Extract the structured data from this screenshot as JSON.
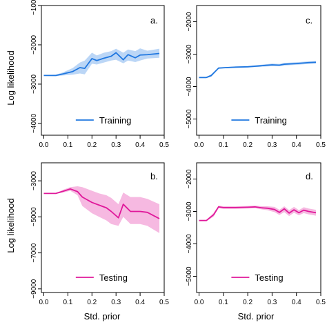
{
  "chart_data": [
    {
      "panel": "a.",
      "type": "line",
      "xlabel": "",
      "ylabel": "Log likelihood",
      "xlim": [
        -0.01,
        0.5
      ],
      "ylim": [
        -4300,
        -1000
      ],
      "xticks": [
        0.0,
        0.1,
        0.2,
        0.3,
        0.4,
        0.5
      ],
      "yticks": [
        -1000,
        -2000,
        -3000,
        -4000
      ],
      "legend": "bottom-center",
      "series": [
        {
          "name": "Training",
          "color": "#1f77e0",
          "x": [
            0.0,
            0.05,
            0.08,
            0.12,
            0.15,
            0.17,
            0.2,
            0.22,
            0.25,
            0.28,
            0.3,
            0.33,
            0.35,
            0.38,
            0.4,
            0.43,
            0.48
          ],
          "y": [
            -2780,
            -2780,
            -2740,
            -2680,
            -2580,
            -2600,
            -2350,
            -2400,
            -2340,
            -2290,
            -2200,
            -2380,
            -2250,
            -2330,
            -2260,
            -2250,
            -2220
          ],
          "lower": [
            -2790,
            -2800,
            -2780,
            -2760,
            -2730,
            -2750,
            -2480,
            -2500,
            -2450,
            -2400,
            -2380,
            -2470,
            -2400,
            -2440,
            -2400,
            -2350,
            -2330
          ],
          "upper": [
            -2770,
            -2760,
            -2700,
            -2590,
            -2450,
            -2400,
            -2200,
            -2270,
            -2200,
            -2160,
            -2100,
            -2200,
            -2120,
            -2160,
            -2090,
            -2150,
            -2100
          ]
        }
      ]
    },
    {
      "panel": "c.",
      "type": "line",
      "xlabel": "",
      "ylabel": "",
      "xlim": [
        -0.01,
        0.5
      ],
      "ylim": [
        -5500,
        -1500
      ],
      "xticks": [
        0.0,
        0.1,
        0.2,
        0.3,
        0.4,
        0.5
      ],
      "yticks": [
        -2000,
        -3000,
        -4000,
        -5000
      ],
      "legend": "bottom-center",
      "series": [
        {
          "name": "Training",
          "color": "#1f77e0",
          "x": [
            0.0,
            0.03,
            0.05,
            0.08,
            0.1,
            0.15,
            0.2,
            0.25,
            0.3,
            0.33,
            0.35,
            0.4,
            0.45,
            0.48
          ],
          "y": [
            -3720,
            -3720,
            -3660,
            -3430,
            -3420,
            -3400,
            -3390,
            -3360,
            -3330,
            -3340,
            -3310,
            -3290,
            -3260,
            -3250
          ],
          "lower": [
            -3740,
            -3740,
            -3700,
            -3450,
            -3440,
            -3420,
            -3410,
            -3390,
            -3370,
            -3370,
            -3350,
            -3330,
            -3300,
            -3290
          ],
          "upper": [
            -3700,
            -3700,
            -3620,
            -3410,
            -3400,
            -3380,
            -3370,
            -3330,
            -3290,
            -3300,
            -3270,
            -3250,
            -3220,
            -3210
          ]
        }
      ]
    },
    {
      "panel": "b.",
      "type": "line",
      "xlabel": "Std. prior",
      "ylabel": "Log likelihood",
      "xlim": [
        -0.01,
        0.5
      ],
      "ylim": [
        -9200,
        -2000
      ],
      "xticks": [
        0.0,
        0.1,
        0.2,
        0.3,
        0.4,
        0.5
      ],
      "yticks": [
        -3000,
        -5000,
        -7000,
        -9000
      ],
      "legend": "bottom-center",
      "series": [
        {
          "name": "Testing",
          "color": "#e0189a",
          "x": [
            0.0,
            0.05,
            0.08,
            0.11,
            0.14,
            0.16,
            0.2,
            0.23,
            0.26,
            0.28,
            0.31,
            0.33,
            0.36,
            0.4,
            0.43,
            0.48
          ],
          "y": [
            -3700,
            -3700,
            -3580,
            -3450,
            -3600,
            -3900,
            -4200,
            -4350,
            -4500,
            -4700,
            -5050,
            -4300,
            -4700,
            -4700,
            -4750,
            -5100
          ],
          "lower": [
            -3720,
            -3720,
            -3650,
            -3550,
            -3800,
            -4400,
            -4800,
            -5000,
            -5200,
            -5400,
            -5500,
            -5000,
            -5400,
            -5400,
            -5500,
            -5900
          ],
          "upper": [
            -3680,
            -3680,
            -3500,
            -3350,
            -3300,
            -3350,
            -3550,
            -3700,
            -3800,
            -3950,
            -4300,
            -3650,
            -3900,
            -3900,
            -4000,
            -4300
          ]
        }
      ]
    },
    {
      "panel": "d.",
      "type": "line",
      "xlabel": "Std. prior",
      "ylabel": "",
      "xlim": [
        -0.01,
        0.5
      ],
      "ylim": [
        -5500,
        -1500
      ],
      "xticks": [
        0.0,
        0.1,
        0.2,
        0.3,
        0.4,
        0.5
      ],
      "yticks": [
        -2000,
        -3000,
        -4000,
        -5000
      ],
      "legend": "bottom-center",
      "series": [
        {
          "name": "Testing",
          "color": "#e0189a",
          "x": [
            0.0,
            0.03,
            0.06,
            0.08,
            0.1,
            0.15,
            0.2,
            0.23,
            0.26,
            0.28,
            0.31,
            0.33,
            0.35,
            0.37,
            0.39,
            0.41,
            0.43,
            0.45,
            0.48
          ],
          "y": [
            -3280,
            -3280,
            -3100,
            -2860,
            -2880,
            -2880,
            -2870,
            -2860,
            -2890,
            -2900,
            -2940,
            -3030,
            -2920,
            -3050,
            -2950,
            -3040,
            -2960,
            -3000,
            -3040
          ],
          "lower": [
            -3300,
            -3300,
            -3160,
            -2900,
            -2920,
            -2920,
            -2910,
            -2900,
            -2940,
            -2960,
            -3020,
            -3110,
            -3020,
            -3140,
            -3040,
            -3120,
            -3050,
            -3090,
            -3130
          ],
          "upper": [
            -3260,
            -3260,
            -3040,
            -2820,
            -2840,
            -2840,
            -2830,
            -2820,
            -2840,
            -2840,
            -2860,
            -2950,
            -2840,
            -2960,
            -2860,
            -2960,
            -2870,
            -2910,
            -2950
          ]
        }
      ]
    }
  ]
}
